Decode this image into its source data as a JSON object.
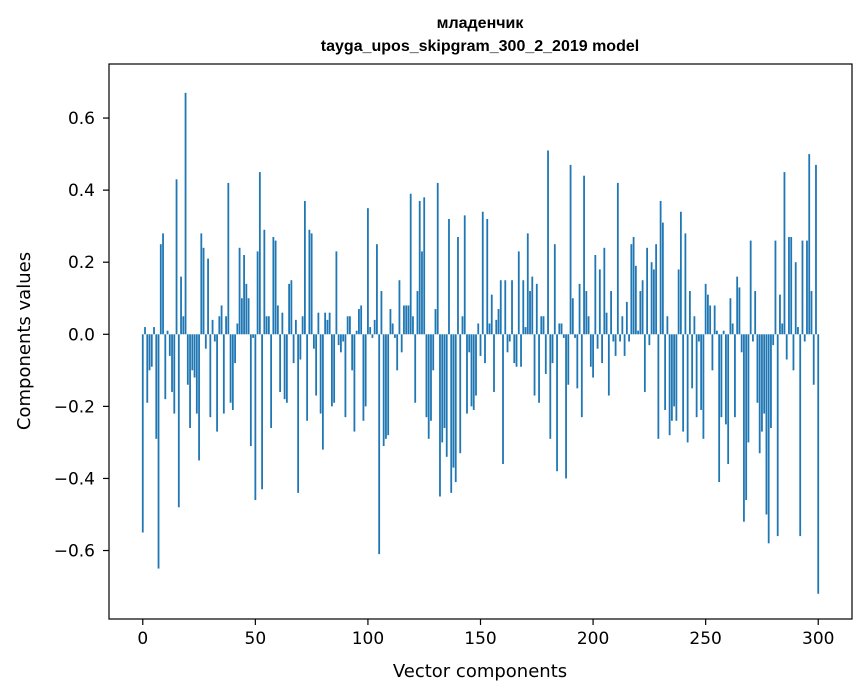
{
  "chart_data": {
    "type": "bar",
    "title": "младенчик",
    "subtitle": "tayga_upos_skipgram_300_2_2019 model",
    "xlabel": "Vector components",
    "ylabel": "Components values",
    "xlim": [
      -15,
      315
    ],
    "ylim": [
      -0.79,
      0.75
    ],
    "xticks": [
      0,
      50,
      100,
      150,
      200,
      250,
      300
    ],
    "xtick_labels": [
      "0",
      "50",
      "100",
      "150",
      "200",
      "250",
      "300"
    ],
    "yticks": [
      -0.6,
      -0.4,
      -0.2,
      0.0,
      0.2,
      0.4,
      0.6
    ],
    "ytick_labels": [
      "−0.6",
      "−0.4",
      "−0.2",
      "0.0",
      "0.2",
      "0.4",
      "0.6"
    ],
    "bar_color": "#1f77b4",
    "grid": false,
    "values": [
      -0.55,
      0.02,
      -0.19,
      -0.1,
      -0.09,
      0.02,
      -0.29,
      -0.65,
      0.25,
      0.28,
      -0.18,
      0.01,
      -0.06,
      -0.16,
      -0.22,
      0.43,
      -0.48,
      0.16,
      0.05,
      0.67,
      -0.14,
      -0.26,
      -0.1,
      -0.12,
      -0.22,
      -0.35,
      0.28,
      0.24,
      -0.04,
      0.21,
      -0.23,
      0.04,
      -0.02,
      -0.27,
      0.05,
      0.08,
      -0.22,
      0.05,
      0.42,
      -0.19,
      -0.21,
      -0.08,
      0.03,
      0.24,
      0.1,
      0.22,
      0.14,
      0.1,
      -0.31,
      -0.01,
      -0.46,
      0.23,
      0.45,
      -0.43,
      0.29,
      0.05,
      0.05,
      -0.26,
      0.27,
      0.26,
      0.08,
      -0.16,
      0.06,
      -0.18,
      -0.19,
      0.14,
      0.15,
      -0.08,
      0.04,
      -0.44,
      -0.07,
      0.05,
      0.37,
      -0.24,
      0.29,
      0.28,
      -0.04,
      -0.17,
      0.06,
      -0.22,
      -0.32,
      0.06,
      0.04,
      0.06,
      -0.2,
      -0.19,
      0.23,
      -0.03,
      -0.05,
      -0.02,
      -0.23,
      0.05,
      0.05,
      -0.1,
      -0.27,
      0.01,
      0.07,
      0.08,
      -0.24,
      -0.2,
      0.35,
      0.02,
      -0.01,
      0.04,
      0.25,
      -0.61,
      0.12,
      -0.31,
      -0.29,
      -0.28,
      0.07,
      0.03,
      -0.01,
      -0.1,
      0.15,
      -0.05,
      0.08,
      0.08,
      0.08,
      0.39,
      0.05,
      -0.19,
      0.12,
      0.37,
      0.23,
      0.38,
      -0.23,
      -0.29,
      -0.24,
      -0.1,
      0.07,
      0.42,
      -0.45,
      -0.3,
      -0.26,
      -0.34,
      0.32,
      -0.44,
      -0.37,
      -0.41,
      0.27,
      -0.33,
      0.05,
      0.33,
      -0.22,
      -0.05,
      -0.2,
      -0.21,
      -0.17,
      0.03,
      -0.06,
      0.34,
      -0.08,
      0.32,
      0.03,
      0.11,
      -0.16,
      0.04,
      0.07,
      0.15,
      -0.36,
      0.15,
      -0.05,
      -0.02,
      0.15,
      -0.08,
      -0.09,
      0.23,
      -0.09,
      0.15,
      0.02,
      0.28,
      0.12,
      0.16,
      -0.17,
      0.14,
      -0.19,
      0.05,
      0.05,
      -0.11,
      0.51,
      -0.29,
      -0.08,
      0.25,
      -0.38,
      0.03,
      0.03,
      -0.01,
      -0.4,
      -0.14,
      0.47,
      0.1,
      -0.01,
      -0.15,
      0.14,
      -0.23,
      0.44,
      0.12,
      0.05,
      -0.09,
      -0.12,
      0.22,
      -0.04,
      0.18,
      -0.08,
      0.24,
      0.06,
      -0.17,
      0.12,
      -0.02,
      -0.06,
      0.42,
      -0.02,
      0.05,
      -0.06,
      0.09,
      -0.02,
      0.25,
      0.27,
      0.19,
      0.01,
      0.12,
      0.15,
      -0.16,
      0.24,
      -0.03,
      0.2,
      0.18,
      0.25,
      -0.29,
      0.37,
      0.31,
      -0.21,
      0.05,
      -0.28,
      -0.24,
      -0.2,
      -0.24,
      0.18,
      0.34,
      -0.27,
      0.28,
      -0.3,
      0.12,
      -0.15,
      0.05,
      -0.23,
      -0.02,
      -0.21,
      -0.29,
      0.14,
      0.11,
      0.08,
      -0.1,
      0.08,
      0.01,
      -0.41,
      -0.23,
      0.01,
      -0.25,
      -0.36,
      0.1,
      0.03,
      -0.23,
      0.16,
      0.13,
      -0.05,
      -0.52,
      -0.46,
      -0.3,
      0.26,
      -0.02,
      0.12,
      -0.19,
      -0.33,
      -0.27,
      -0.22,
      -0.5,
      -0.58,
      -0.26,
      -0.03,
      0.26,
      -0.56,
      0.11,
      0.03,
      0.45,
      -0.07,
      0.27,
      0.27,
      -0.1,
      0.2,
      0.02,
      -0.56,
      0.26,
      -0.02,
      0.26,
      0.5,
      0.12,
      -0.14,
      0.47,
      -0.72
    ]
  }
}
